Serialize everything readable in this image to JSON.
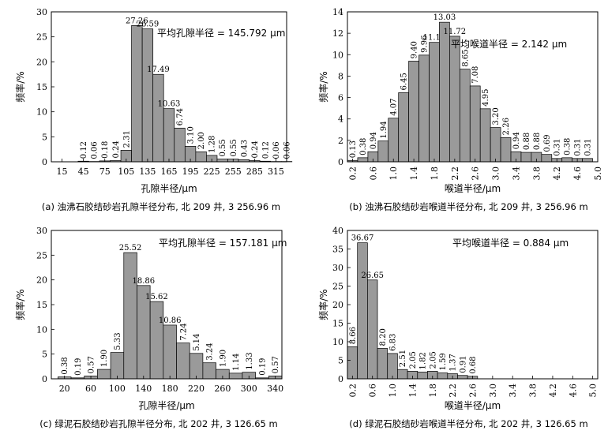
{
  "chart_data": [
    {
      "type": "bar",
      "id": "a",
      "caption": "(a) 浊沸石胶结砂岩孔隙半径分布, 北 209 井, 3 256.96 m",
      "annotation": "平均孔隙半径 = 145.792 μm",
      "xlabel": "孔隙半径/μm",
      "ylabel": "频率/%",
      "ylim": [
        0,
        30
      ],
      "yticks": [
        0,
        5,
        10,
        15,
        20,
        25,
        30
      ],
      "xrange": [
        0,
        330
      ],
      "bin_width": 15,
      "xticks": [
        15,
        45,
        75,
        105,
        135,
        165,
        195,
        225,
        255,
        285,
        315
      ],
      "x": [
        30,
        45,
        60,
        75,
        90,
        105,
        120,
        135,
        150,
        165,
        180,
        195,
        210,
        225,
        240,
        255,
        270,
        285,
        300,
        315,
        330
      ],
      "values": [
        0,
        0.12,
        0.06,
        0.18,
        0.24,
        2.31,
        27.26,
        26.59,
        17.49,
        10.63,
        6.74,
        3.1,
        2.0,
        1.28,
        0.55,
        0.55,
        0.43,
        0.24,
        0.12,
        0.06,
        0.06
      ],
      "labels": [
        "",
        "0.12",
        "0.06",
        "0.18",
        "0.24",
        "2.31",
        "27.26",
        "26.59",
        "17.49",
        "10.63",
        "6.74",
        "3.10",
        "2.00",
        "1.28",
        "0.55",
        "0.55",
        "0.43",
        "0.24",
        "0.12",
        "0.06",
        "0.06"
      ]
    },
    {
      "type": "bar",
      "id": "b",
      "caption": "(b) 浊沸石胶结砂岩喉道半径分布, 北 209 井, 3 256.96 m",
      "annotation": "平均喉道半径 = 2.142 μm",
      "xlabel": "喉道半径/μm",
      "ylabel": "频率/%",
      "ylim": [
        0,
        14
      ],
      "yticks": [
        0,
        2,
        4,
        6,
        8,
        10,
        12,
        14
      ],
      "xrange": [
        0.1,
        5.0
      ],
      "bin_width": 0.2,
      "xticks": [
        "0.2",
        "0.6",
        "1.0",
        "1.4",
        "1.8",
        "2.2",
        "2.6",
        "3.0",
        "3.4",
        "3.8",
        "4.2",
        "4.6",
        "5.0"
      ],
      "x": [
        0.2,
        0.4,
        0.6,
        0.8,
        1.0,
        1.2,
        1.4,
        1.6,
        1.8,
        2.0,
        2.2,
        2.4,
        2.6,
        2.8,
        3.0,
        3.2,
        3.4,
        3.6,
        3.8,
        4.0,
        4.2,
        4.4,
        4.6,
        4.8,
        5.0
      ],
      "values": [
        0.13,
        0.38,
        0.94,
        1.94,
        4.07,
        6.45,
        9.4,
        9.96,
        11.15,
        13.03,
        11.72,
        8.65,
        7.08,
        4.95,
        3.2,
        2.26,
        0.94,
        0.88,
        0.88,
        0.69,
        0.31,
        0.38,
        0.31,
        0.31,
        0
      ],
      "labels": [
        "0.13",
        "0.38",
        "0.94",
        "1.94",
        "4.07",
        "6.45",
        "9.40",
        "9.96",
        "11.15",
        "13.03",
        "11.72",
        "8.65",
        "7.08",
        "4.95",
        "3.20",
        "2.26",
        "0.94",
        "0.88",
        "0.88",
        "0.69",
        "0.31",
        "0.38",
        "0.31",
        "0.31",
        ""
      ]
    },
    {
      "type": "bar",
      "id": "c",
      "caption": "(c) 绿泥石胶结砂岩孔隙半径分布, 北 202 井, 3 126.65 m",
      "annotation": "平均孔隙半径 = 157.181 μm",
      "xlabel": "孔隙半径/μm",
      "ylabel": "频率/%",
      "ylim": [
        0,
        30
      ],
      "yticks": [
        0,
        5,
        10,
        15,
        20,
        25,
        30
      ],
      "xrange": [
        0,
        350
      ],
      "bin_width": 20,
      "xticks": [
        20,
        60,
        100,
        140,
        180,
        220,
        260,
        300,
        340
      ],
      "x": [
        20,
        40,
        60,
        80,
        100,
        120,
        140,
        160,
        180,
        200,
        220,
        240,
        260,
        280,
        300,
        320,
        340
      ],
      "values": [
        0.38,
        0.19,
        0.57,
        1.9,
        5.33,
        25.52,
        18.86,
        15.62,
        10.86,
        7.24,
        5.14,
        3.24,
        1.9,
        1.14,
        1.33,
        0.19,
        0.57
      ],
      "labels": [
        "0.38",
        "0.19",
        "0.57",
        "1.90",
        "5.33",
        "25.52",
        "18.86",
        "15.62",
        "10.86",
        "7.24",
        "5.14",
        "3.24",
        "1.90",
        "1.14",
        "1.33",
        "0.19",
        "0.57"
      ]
    },
    {
      "type": "bar",
      "id": "d",
      "caption": "(d) 绿泥石胶结砂岩喉道半径分布, 北 202 井, 3 126.65 m",
      "annotation": "平均喉道半径 = 0.884 μm",
      "xlabel": "喉道半径/μm",
      "ylabel": "频率/%",
      "ylim": [
        0,
        40
      ],
      "yticks": [
        0,
        5,
        10,
        15,
        20,
        25,
        30,
        35,
        40
      ],
      "xrange": [
        0.1,
        5.1
      ],
      "bin_width": 0.2,
      "xticks": [
        "0.2",
        "0.6",
        "1.0",
        "1.4",
        "1.8",
        "2.2",
        "2.6",
        "3.0",
        "3.4",
        "3.8",
        "4.2",
        "4.6",
        "5.0"
      ],
      "x": [
        0.2,
        0.4,
        0.6,
        0.8,
        1.0,
        1.2,
        1.4,
        1.6,
        1.8,
        2.0,
        2.2,
        2.4,
        2.6
      ],
      "values": [
        8.66,
        36.67,
        26.65,
        8.2,
        6.83,
        2.51,
        2.05,
        1.82,
        2.05,
        1.59,
        1.37,
        0.91,
        0.68
      ],
      "labels": [
        "8.66",
        "36.67",
        "26.65",
        "8.20",
        "6.83",
        "2.51",
        "2.05",
        "1.82",
        "2.05",
        "1.59",
        "1.37",
        "0.91",
        "0.68"
      ]
    }
  ]
}
